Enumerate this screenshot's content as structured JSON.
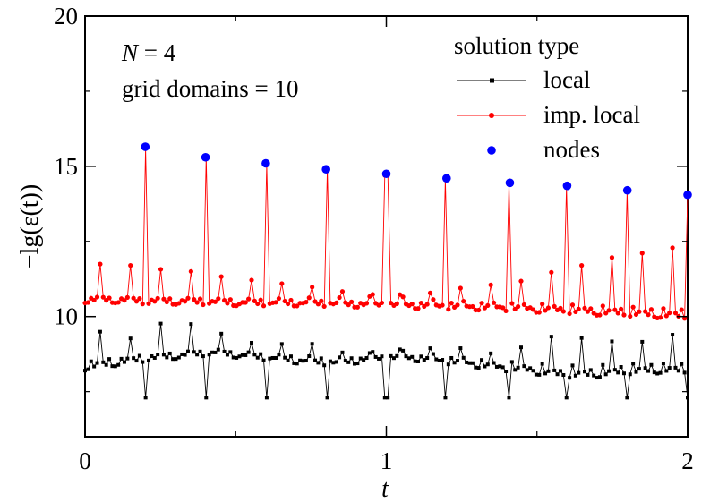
{
  "chart_data": {
    "type": "line",
    "xlabel": "t",
    "ylabel": "−lg(ε(t))",
    "xlim": [
      0,
      2
    ],
    "ylim": [
      6,
      20
    ],
    "x_ticks": [
      0,
      1,
      2
    ],
    "x_tick_labels": [
      "0",
      "1",
      "2"
    ],
    "y_ticks": [
      10,
      15,
      20
    ],
    "y_tick_labels": [
      "10",
      "15",
      "20"
    ],
    "annotations": {
      "n_symbol": "N",
      "n_value": " = 4",
      "grid_domains": "grid domains = 10"
    },
    "legend": {
      "title": "solution type",
      "position": "top-right"
    },
    "series": [
      {
        "name": "local",
        "color": "#000000",
        "marker": "square",
        "line": true,
        "x_range": [
          0,
          2
        ],
        "sample_count": 200,
        "baseline": [
          8.2,
          8.35,
          8.5,
          8.6,
          8.7,
          8.6,
          8.5,
          8.4,
          8.35,
          8.5,
          8.55,
          8.45,
          8.35,
          8.2,
          8.1,
          7.95,
          7.95,
          8.05,
          8.1,
          8.1
        ],
        "segment_peaks": [
          9.5,
          9.3,
          9.9,
          10.0,
          9.7,
          9.4,
          9.6,
          10.1,
          9.5,
          9.3,
          9.6,
          9.8,
          9.7,
          9.2,
          9.5,
          9.9,
          9.6,
          9.3,
          9.2,
          9.4
        ],
        "secondary_peak": 9.1,
        "dip_times": [
          0.2,
          0.4,
          0.6,
          0.8,
          1.0,
          1.2,
          1.41,
          1.6,
          1.8,
          2.0
        ],
        "dip_value": 7.3
      },
      {
        "name": "imp. local",
        "color": "#ff0000",
        "marker": "circle",
        "line": true,
        "x_range": [
          0,
          2
        ],
        "sample_count": 200,
        "baseline": [
          10.45,
          10.45,
          10.4,
          10.4,
          10.38,
          10.35,
          10.35,
          10.35,
          10.32,
          10.3,
          10.28,
          10.25,
          10.22,
          10.2,
          10.15,
          10.1,
          10.05,
          10.0,
          9.95,
          9.9
        ],
        "segment_peaks": [
          11.75,
          11.75,
          11.7,
          11.75,
          11.7,
          11.75,
          11.8,
          11.85,
          11.8,
          11.85,
          11.9,
          11.8,
          12.0,
          11.9,
          11.85,
          12.05,
          12.1,
          12.2,
          12.2,
          12.3
        ],
        "secondary_peak": 10.9,
        "spike_times": [
          0.2,
          0.4,
          0.6,
          0.8,
          1.0,
          1.2,
          1.41,
          1.6,
          1.8,
          2.0
        ],
        "spike_values": [
          15.6,
          15.3,
          15.05,
          14.9,
          14.7,
          14.55,
          14.4,
          14.3,
          14.15,
          14.0
        ]
      },
      {
        "name": "nodes",
        "color": "#0000ff",
        "marker": "circle",
        "line": false,
        "x": [
          0.2,
          0.4,
          0.6,
          0.8,
          1.0,
          1.2,
          1.41,
          1.6,
          1.8,
          2.0
        ],
        "y": [
          15.65,
          15.3,
          15.1,
          14.9,
          14.75,
          14.6,
          14.45,
          14.35,
          14.2,
          14.05
        ]
      }
    ]
  }
}
